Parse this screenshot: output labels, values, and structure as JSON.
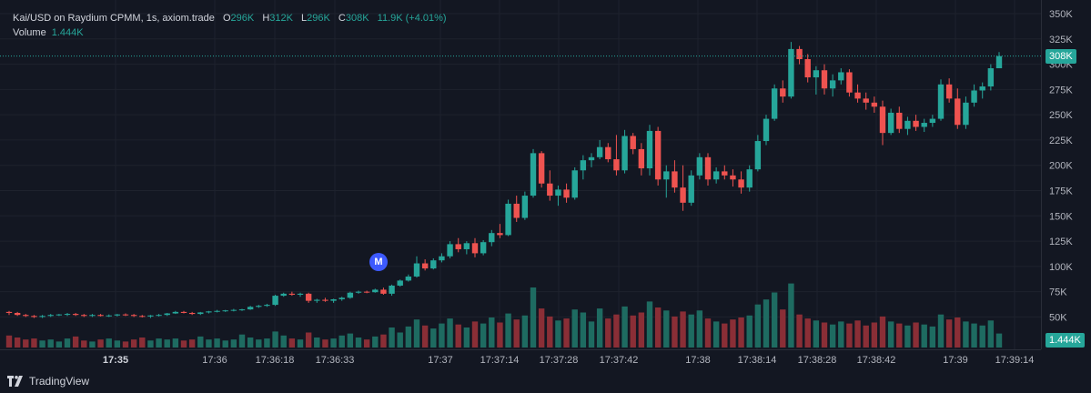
{
  "legend": {
    "title": "Kai/USD on Raydium CPMM, 1s, axiom.trade",
    "o_label": "O",
    "o_value": "296K",
    "h_label": "H",
    "h_value": "312K",
    "l_label": "L",
    "l_value": "296K",
    "c_label": "C",
    "c_value": "308K",
    "change": "11.9K (+4.01%)",
    "volume_label": "Volume",
    "volume_value": "1.444K"
  },
  "last_price_badge": "308K",
  "volume_badge": "1.444K",
  "marker_letter": "M",
  "footer": {
    "brand": "TradingView"
  },
  "colors": {
    "up": "#26a69a",
    "down": "#ef5350",
    "up_vol": "#1e6b61",
    "down_vol": "#8a2e36",
    "background": "#131722",
    "grid": "#1e222d",
    "badge_price": "#26a69a",
    "marker": "#3d5afe"
  },
  "chart_data": {
    "type": "candlestick",
    "title": "Kai/USD on Raydium CPMM, 1s, axiom.trade",
    "ylim": [
      0,
      350000
    ],
    "y_ticks": [
      "50K",
      "75K",
      "100K",
      "125K",
      "150K",
      "175K",
      "200K",
      "225K",
      "250K",
      "275K",
      "300K",
      "325K",
      "350K"
    ],
    "y_tick_values": [
      50000,
      75000,
      100000,
      125000,
      150000,
      175000,
      200000,
      225000,
      250000,
      275000,
      300000,
      325000,
      350000
    ],
    "x_ticks": [
      "17:35",
      "17:36",
      "17:36:18",
      "17:36:33",
      "17:37",
      "17:37:14",
      "17:37:28",
      "17:37:42",
      "17:38",
      "17:38:14",
      "17:38:28",
      "17:38:42",
      "17:39",
      "17:39:14"
    ],
    "x_tick_bold": [
      "17:35"
    ],
    "grid": true,
    "last_close": 308000,
    "candles": [
      [
        55000,
        56000,
        52000,
        54000,
        1.2
      ],
      [
        54000,
        55000,
        51000,
        52000,
        1.0
      ],
      [
        52000,
        53000,
        50000,
        51000,
        0.8
      ],
      [
        51000,
        52000,
        49000,
        50000,
        0.9
      ],
      [
        50000,
        52000,
        49000,
        51000,
        0.7
      ],
      [
        51000,
        53000,
        50000,
        52000,
        0.8
      ],
      [
        52000,
        53000,
        51000,
        52500,
        0.6
      ],
      [
        52500,
        54000,
        51000,
        53000,
        0.9
      ],
      [
        53000,
        54000,
        51000,
        52000,
        1.1
      ],
      [
        52000,
        53000,
        50000,
        51000,
        0.7
      ],
      [
        51000,
        53000,
        50000,
        52000,
        0.6
      ],
      [
        52000,
        53000,
        50500,
        51000,
        0.8
      ],
      [
        51000,
        52500,
        50000,
        51500,
        0.9
      ],
      [
        51500,
        53000,
        50500,
        52500,
        0.7
      ],
      [
        52500,
        53500,
        51000,
        52000,
        0.6
      ],
      [
        52000,
        53000,
        50000,
        51000,
        0.8
      ],
      [
        51000,
        52000,
        49500,
        50500,
        1.0
      ],
      [
        50500,
        52000,
        49000,
        51500,
        0.7
      ],
      [
        51500,
        53000,
        50500,
        52000,
        0.9
      ],
      [
        52000,
        54000,
        51000,
        53500,
        0.8
      ],
      [
        53500,
        56000,
        53000,
        55000,
        0.9
      ],
      [
        55000,
        56000,
        53500,
        54000,
        0.7
      ],
      [
        54000,
        55000,
        52000,
        53000,
        0.8
      ],
      [
        53000,
        55000,
        52000,
        54500,
        1.1
      ],
      [
        54500,
        56000,
        53500,
        55500,
        0.8
      ],
      [
        55500,
        57000,
        54500,
        56000,
        0.9
      ],
      [
        56000,
        57000,
        55000,
        56500,
        0.7
      ],
      [
        56500,
        58000,
        55500,
        57000,
        0.8
      ],
      [
        57000,
        58000,
        56000,
        57500,
        1.3
      ],
      [
        57500,
        61000,
        57000,
        60000,
        1.0
      ],
      [
        60000,
        62000,
        59000,
        61000,
        0.8
      ],
      [
        61000,
        63000,
        60000,
        62000,
        0.9
      ],
      [
        62000,
        72000,
        61000,
        71000,
        1.6
      ],
      [
        71000,
        74000,
        70000,
        73000,
        1.2
      ],
      [
        73000,
        75000,
        71000,
        72000,
        0.9
      ],
      [
        72000,
        74000,
        70000,
        73000,
        0.8
      ],
      [
        73000,
        74000,
        64000,
        66000,
        1.5
      ],
      [
        66000,
        68000,
        64000,
        67000,
        1.0
      ],
      [
        67000,
        69000,
        65000,
        66000,
        0.8
      ],
      [
        66000,
        68000,
        64000,
        67500,
        0.9
      ],
      [
        67500,
        70000,
        66000,
        69000,
        1.2
      ],
      [
        69000,
        75000,
        68000,
        74000,
        1.4
      ],
      [
        74000,
        76000,
        73000,
        75000,
        1.0
      ],
      [
        75000,
        76000,
        73500,
        74500,
        0.8
      ],
      [
        74500,
        78000,
        74000,
        77000,
        1.1
      ],
      [
        77000,
        79000,
        72000,
        73000,
        1.3
      ],
      [
        73000,
        82000,
        71000,
        81000,
        2.0
      ],
      [
        81000,
        87000,
        80000,
        86000,
        1.5
      ],
      [
        86000,
        92000,
        85000,
        90000,
        2.1
      ],
      [
        90000,
        110000,
        89000,
        103000,
        2.8
      ],
      [
        103000,
        107000,
        96000,
        98000,
        2.2
      ],
      [
        98000,
        108000,
        97000,
        106000,
        1.9
      ],
      [
        106000,
        113000,
        104000,
        110000,
        2.4
      ],
      [
        110000,
        125000,
        108000,
        122000,
        2.9
      ],
      [
        122000,
        128000,
        114000,
        117000,
        2.3
      ],
      [
        117000,
        125000,
        112000,
        123000,
        2.0
      ],
      [
        123000,
        128000,
        109000,
        113000,
        2.6
      ],
      [
        113000,
        126000,
        111000,
        124000,
        2.4
      ],
      [
        124000,
        136000,
        120000,
        133000,
        3.0
      ],
      [
        133000,
        142000,
        128000,
        131000,
        2.5
      ],
      [
        131000,
        166000,
        130000,
        162000,
        3.4
      ],
      [
        162000,
        170000,
        144000,
        148000,
        2.8
      ],
      [
        148000,
        174000,
        146000,
        170000,
        3.2
      ],
      [
        170000,
        216000,
        168000,
        212000,
        6.0
      ],
      [
        212000,
        214000,
        178000,
        182000,
        3.9
      ],
      [
        182000,
        195000,
        165000,
        170000,
        3.1
      ],
      [
        170000,
        180000,
        160000,
        176000,
        2.7
      ],
      [
        176000,
        182000,
        163000,
        168000,
        2.9
      ],
      [
        168000,
        198000,
        166000,
        195000,
        3.8
      ],
      [
        195000,
        210000,
        186000,
        205000,
        3.5
      ],
      [
        205000,
        212000,
        198000,
        208000,
        2.6
      ],
      [
        208000,
        225000,
        206000,
        218000,
        3.9
      ],
      [
        218000,
        222000,
        203000,
        206000,
        2.9
      ],
      [
        206000,
        230000,
        190000,
        195000,
        3.3
      ],
      [
        195000,
        235000,
        192000,
        229000,
        4.1
      ],
      [
        229000,
        232000,
        211000,
        216000,
        3.2
      ],
      [
        216000,
        222000,
        190000,
        197000,
        3.5
      ],
      [
        197000,
        240000,
        190000,
        234000,
        4.6
      ],
      [
        234000,
        238000,
        180000,
        186000,
        4.0
      ],
      [
        186000,
        200000,
        168000,
        194000,
        3.7
      ],
      [
        194000,
        205000,
        173000,
        178000,
        3.1
      ],
      [
        178000,
        200000,
        155000,
        163000,
        3.6
      ],
      [
        163000,
        195000,
        160000,
        190000,
        3.3
      ],
      [
        190000,
        212000,
        186000,
        208000,
        3.7
      ],
      [
        208000,
        212000,
        180000,
        186000,
        2.9
      ],
      [
        186000,
        198000,
        182000,
        194000,
        2.6
      ],
      [
        194000,
        200000,
        186000,
        190000,
        2.4
      ],
      [
        190000,
        196000,
        179000,
        186000,
        2.8
      ],
      [
        186000,
        194000,
        172000,
        178000,
        3.0
      ],
      [
        178000,
        200000,
        174000,
        196000,
        3.2
      ],
      [
        196000,
        230000,
        194000,
        224000,
        4.3
      ],
      [
        224000,
        250000,
        220000,
        246000,
        4.8
      ],
      [
        246000,
        280000,
        244000,
        276000,
        5.5
      ],
      [
        276000,
        284000,
        262000,
        268000,
        3.8
      ],
      [
        268000,
        322000,
        266000,
        315000,
        6.4
      ],
      [
        315000,
        318000,
        300000,
        305000,
        3.3
      ],
      [
        305000,
        310000,
        282000,
        287000,
        2.9
      ],
      [
        287000,
        298000,
        270000,
        294000,
        2.7
      ],
      [
        294000,
        300000,
        270000,
        276000,
        2.5
      ],
      [
        276000,
        290000,
        268000,
        284000,
        2.3
      ],
      [
        284000,
        296000,
        280000,
        292000,
        2.6
      ],
      [
        292000,
        295000,
        268000,
        272000,
        2.4
      ],
      [
        272000,
        280000,
        262000,
        266000,
        2.7
      ],
      [
        266000,
        272000,
        255000,
        262000,
        2.2
      ],
      [
        262000,
        268000,
        252000,
        258000,
        2.5
      ],
      [
        258000,
        264000,
        220000,
        232000,
        3.1
      ],
      [
        232000,
        256000,
        230000,
        252000,
        2.6
      ],
      [
        252000,
        258000,
        232000,
        236000,
        2.4
      ],
      [
        236000,
        248000,
        230000,
        244000,
        2.2
      ],
      [
        244000,
        250000,
        234000,
        238000,
        2.5
      ],
      [
        238000,
        246000,
        233000,
        242000,
        2.3
      ],
      [
        242000,
        250000,
        238000,
        246000,
        2.1
      ],
      [
        246000,
        285000,
        244000,
        280000,
        3.3
      ],
      [
        280000,
        286000,
        262000,
        266000,
        2.8
      ],
      [
        266000,
        276000,
        236000,
        240000,
        3.0
      ],
      [
        240000,
        268000,
        236000,
        262000,
        2.6
      ],
      [
        262000,
        280000,
        258000,
        274000,
        2.4
      ],
      [
        274000,
        282000,
        266000,
        278000,
        2.2
      ],
      [
        278000,
        300000,
        274000,
        296000,
        2.7
      ],
      [
        296000,
        312000,
        296000,
        308000,
        1.4
      ]
    ]
  }
}
